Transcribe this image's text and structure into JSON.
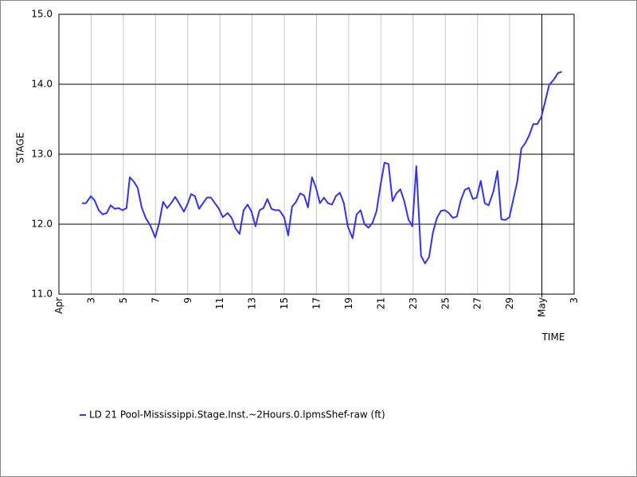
{
  "chart_data": {
    "type": "line",
    "y_label": "STAGE",
    "x_label": "TIME",
    "xlim": [
      1,
      33
    ],
    "xticks": [
      {
        "value": 1,
        "label": "Apr"
      },
      3,
      5,
      7,
      9,
      11,
      13,
      15,
      17,
      19,
      21,
      23,
      25,
      27,
      29,
      {
        "value": 31,
        "label": "May"
      },
      {
        "value": 33,
        "label": "3"
      }
    ],
    "x_marker": 31,
    "ylim": [
      11,
      15
    ],
    "yticks": [
      {
        "value": 11,
        "label": "11.0"
      },
      {
        "value": 12,
        "label": "12.0"
      },
      {
        "value": 13,
        "label": "13.0"
      },
      {
        "value": 14,
        "label": "14.0"
      },
      {
        "value": 15,
        "label": "15.0"
      }
    ],
    "grid": true,
    "x": [
      2.43,
      2.68,
      2.98,
      3.22,
      3.47,
      3.72,
      3.97,
      4.21,
      4.46,
      4.71,
      4.95,
      5.2,
      5.4,
      5.65,
      5.89,
      6.14,
      6.39,
      6.68,
      6.98,
      7.23,
      7.47,
      7.72,
      7.97,
      8.22,
      8.46,
      8.76,
      9.01,
      9.21,
      9.45,
      9.7,
      9.95,
      10.19,
      10.44,
      10.69,
      10.94,
      11.18,
      11.48,
      11.73,
      11.97,
      12.22,
      12.47,
      12.72,
      12.96,
      13.21,
      13.46,
      13.7,
      13.95,
      14.2,
      14.45,
      14.69,
      14.99,
      15.24,
      15.48,
      15.73,
      15.98,
      16.23,
      16.47,
      16.72,
      16.97,
      17.21,
      17.46,
      17.71,
      17.96,
      18.2,
      18.45,
      18.7,
      18.94,
      19.24,
      19.49,
      19.74,
      19.98,
      20.23,
      20.48,
      20.73,
      20.97,
      21.22,
      21.47,
      21.72,
      21.96,
      22.21,
      22.46,
      22.71,
      22.95,
      23.2,
      23.49,
      23.74,
      23.99,
      24.23,
      24.48,
      24.73,
      24.97,
      25.22,
      25.47,
      25.72,
      25.96,
      26.21,
      26.46,
      26.71,
      26.95,
      27.2,
      27.45,
      27.69,
      27.99,
      28.24,
      28.48,
      28.73,
      28.98,
      29.23,
      29.47,
      29.72,
      29.97,
      30.21,
      30.46,
      30.71,
      30.96,
      31.21,
      31.45,
      31.75,
      32.0,
      32.24
    ],
    "series": [
      {
        "name": "LD 21 Pool-Mississippi.Stage.Inst.~2Hours.0.lpmsShef-raw (ft)",
        "color": "#3333ee",
        "values": [
          12.3,
          12.3,
          12.4,
          12.34,
          12.2,
          12.14,
          12.16,
          12.27,
          12.22,
          12.23,
          12.2,
          12.23,
          12.67,
          12.61,
          12.52,
          12.24,
          12.09,
          11.98,
          11.81,
          12.02,
          12.32,
          12.23,
          12.3,
          12.39,
          12.3,
          12.18,
          12.3,
          12.43,
          12.4,
          12.22,
          12.3,
          12.38,
          12.38,
          12.3,
          12.22,
          12.1,
          12.16,
          12.09,
          11.94,
          11.86,
          12.2,
          12.28,
          12.18,
          11.97,
          12.2,
          12.23,
          12.36,
          12.22,
          12.2,
          12.2,
          12.1,
          11.84,
          12.25,
          12.32,
          12.44,
          12.41,
          12.24,
          12.67,
          12.52,
          12.3,
          12.38,
          12.3,
          12.28,
          12.4,
          12.45,
          12.3,
          11.97,
          11.8,
          12.14,
          12.2,
          12.0,
          11.95,
          12.02,
          12.19,
          12.55,
          12.88,
          12.86,
          12.33,
          12.44,
          12.5,
          12.32,
          12.07,
          11.97,
          12.83,
          11.55,
          11.44,
          11.53,
          11.88,
          12.09,
          12.19,
          12.2,
          12.16,
          12.09,
          12.11,
          12.34,
          12.49,
          12.52,
          12.36,
          12.38,
          12.62,
          12.3,
          12.27,
          12.47,
          12.76,
          12.07,
          12.06,
          12.1,
          12.36,
          12.61,
          13.08,
          13.16,
          13.27,
          13.43,
          13.43,
          13.53,
          13.76,
          13.99,
          14.07,
          14.16,
          14.18
        ]
      }
    ]
  }
}
